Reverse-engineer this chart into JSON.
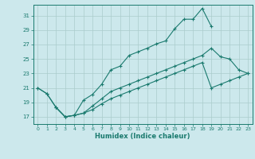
{
  "xlabel": "Humidex (Indice chaleur)",
  "bg_color": "#cce8ec",
  "grid_color": "#aacccc",
  "line_color": "#1a7a6e",
  "xlim": [
    -0.5,
    23.5
  ],
  "ylim": [
    16,
    32.5
  ],
  "xticks": [
    0,
    1,
    2,
    3,
    4,
    5,
    6,
    7,
    8,
    9,
    10,
    11,
    12,
    13,
    14,
    15,
    16,
    17,
    18,
    19,
    20,
    21,
    22,
    23
  ],
  "yticks": [
    17,
    19,
    21,
    23,
    25,
    27,
    29,
    31
  ],
  "curve1_x": [
    0,
    1,
    2,
    3,
    4,
    5,
    6,
    7,
    8,
    9,
    10,
    11,
    12,
    13,
    14,
    15,
    16,
    17,
    18,
    19
  ],
  "curve1_y": [
    21.0,
    20.2,
    18.3,
    17.0,
    17.2,
    19.3,
    20.1,
    21.5,
    23.5,
    24.0,
    25.5,
    26.0,
    26.5,
    27.1,
    27.5,
    29.2,
    30.5,
    30.5,
    32.0,
    29.5
  ],
  "curve2_x": [
    0,
    1,
    2,
    3,
    4,
    5,
    6,
    7,
    8,
    9,
    10,
    11,
    12,
    13,
    14,
    15,
    16,
    17,
    18,
    19,
    20,
    21,
    22,
    23
  ],
  "curve2_y": [
    21.0,
    20.2,
    18.3,
    17.0,
    17.2,
    17.5,
    18.5,
    19.5,
    20.5,
    21.0,
    21.5,
    22.0,
    22.5,
    23.0,
    23.5,
    24.0,
    24.5,
    25.0,
    25.5,
    26.5,
    25.3,
    25.0,
    23.5,
    23.0
  ],
  "curve3_x": [
    2,
    3,
    4,
    5,
    6,
    7,
    8,
    9,
    10,
    11,
    12,
    13,
    14,
    15,
    16,
    17,
    18,
    19,
    20,
    21,
    22,
    23
  ],
  "curve3_y": [
    18.3,
    17.0,
    17.2,
    17.5,
    18.0,
    18.8,
    19.5,
    20.0,
    20.5,
    21.0,
    21.5,
    22.0,
    22.5,
    23.0,
    23.5,
    24.0,
    24.5,
    21.0,
    21.5,
    22.0,
    22.5,
    23.0
  ]
}
